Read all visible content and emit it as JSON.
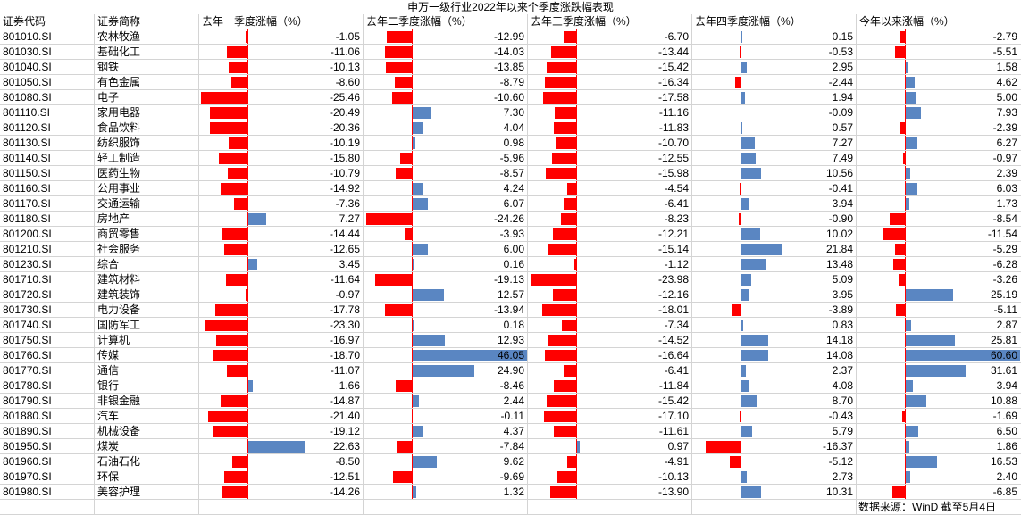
{
  "title": "申万一级行业2022年以来个季度涨跌幅表现",
  "headers": [
    "证券代码",
    "证券简称",
    "去年一季度涨幅（%）",
    "去年二季度涨幅（%）",
    "去年三季度涨幅（%）",
    "去年四季度涨幅（%）",
    "今年以来涨幅（%）"
  ],
  "colors": {
    "negative_bar": "#ff0000",
    "positive_bar": "#5a86c2",
    "grid": "#d4d4d4"
  },
  "bar_scale_max_abs": [
    26,
    25,
    25,
    22,
    26
  ],
  "rows": [
    {
      "code": "801010.SI",
      "name": "农林牧渔",
      "values": [
        "-1.05",
        "-12.99",
        "-6.70",
        "0.15",
        "-2.79"
      ]
    },
    {
      "code": "801030.SI",
      "name": "基础化工",
      "values": [
        "-11.06",
        "-14.03",
        "-13.44",
        "-0.53",
        "-5.51"
      ]
    },
    {
      "code": "801040.SI",
      "name": "钢铁",
      "values": [
        "-10.13",
        "-13.85",
        "-15.42",
        "2.95",
        "1.58"
      ]
    },
    {
      "code": "801050.SI",
      "name": "有色金属",
      "values": [
        "-8.60",
        "-8.79",
        "-16.34",
        "-2.44",
        "4.62"
      ]
    },
    {
      "code": "801080.SI",
      "name": "电子",
      "values": [
        "-25.46",
        "-10.60",
        "-17.58",
        "1.94",
        "5.00"
      ]
    },
    {
      "code": "801110.SI",
      "name": "家用电器",
      "values": [
        "-20.49",
        "7.30",
        "-11.16",
        "-0.09",
        "7.93"
      ]
    },
    {
      "code": "801120.SI",
      "name": "食品饮料",
      "values": [
        "-20.36",
        "4.04",
        "-11.83",
        "0.57",
        "-2.39"
      ]
    },
    {
      "code": "801130.SI",
      "name": "纺织服饰",
      "values": [
        "-10.19",
        "0.98",
        "-10.70",
        "7.27",
        "6.27"
      ]
    },
    {
      "code": "801140.SI",
      "name": "轻工制造",
      "values": [
        "-15.80",
        "-5.96",
        "-12.55",
        "7.49",
        "-0.97"
      ]
    },
    {
      "code": "801150.SI",
      "name": "医药生物",
      "values": [
        "-10.79",
        "-8.57",
        "-15.98",
        "10.56",
        "2.39"
      ]
    },
    {
      "code": "801160.SI",
      "name": "公用事业",
      "values": [
        "-14.92",
        "4.24",
        "-4.54",
        "-0.41",
        "6.03"
      ]
    },
    {
      "code": "801170.SI",
      "name": "交通运输",
      "values": [
        "-7.36",
        "6.07",
        "-6.41",
        "3.94",
        "1.73"
      ]
    },
    {
      "code": "801180.SI",
      "name": "房地产",
      "values": [
        "7.27",
        "-24.26",
        "-8.23",
        "-0.90",
        "-8.54"
      ]
    },
    {
      "code": "801200.SI",
      "name": "商贸零售",
      "values": [
        "-14.44",
        "-3.93",
        "-12.21",
        "10.02",
        "-11.54"
      ]
    },
    {
      "code": "801210.SI",
      "name": "社会服务",
      "values": [
        "-12.65",
        "6.00",
        "-15.14",
        "21.84",
        "-5.29"
      ]
    },
    {
      "code": "801230.SI",
      "name": "综合",
      "values": [
        "3.45",
        "0.16",
        "-1.12",
        "13.48",
        "-6.28"
      ]
    },
    {
      "code": "801710.SI",
      "name": "建筑材料",
      "values": [
        "-11.64",
        "-19.13",
        "-23.98",
        "5.09",
        "-3.26"
      ]
    },
    {
      "code": "801720.SI",
      "name": "建筑装饰",
      "values": [
        "-0.97",
        "12.57",
        "-12.16",
        "3.95",
        "25.19"
      ]
    },
    {
      "code": "801730.SI",
      "name": "电力设备",
      "values": [
        "-17.78",
        "-13.94",
        "-18.01",
        "-3.89",
        "-5.11"
      ]
    },
    {
      "code": "801740.SI",
      "name": "国防军工",
      "values": [
        "-23.30",
        "0.18",
        "-7.34",
        "0.83",
        "2.87"
      ]
    },
    {
      "code": "801750.SI",
      "name": "计算机",
      "values": [
        "-16.97",
        "12.93",
        "-14.52",
        "14.18",
        "25.81"
      ]
    },
    {
      "code": "801760.SI",
      "name": "传媒",
      "values": [
        "-18.70",
        "46.05",
        "-16.64",
        "14.08",
        "60.60"
      ]
    },
    {
      "code": "801770.SI",
      "name": "通信",
      "values": [
        "-11.07",
        "24.90",
        "-6.41",
        "2.37",
        "31.61"
      ]
    },
    {
      "code": "801780.SI",
      "name": "银行",
      "values": [
        "1.66",
        "-8.46",
        "-11.84",
        "4.08",
        "3.94"
      ]
    },
    {
      "code": "801790.SI",
      "name": "非银金融",
      "values": [
        "-14.87",
        "2.44",
        "-15.42",
        "8.70",
        "10.88"
      ]
    },
    {
      "code": "801880.SI",
      "name": "汽车",
      "values": [
        "-21.40",
        "-0.11",
        "-17.10",
        "-0.43",
        "-1.69"
      ]
    },
    {
      "code": "801890.SI",
      "name": "机械设备",
      "values": [
        "-19.12",
        "4.37",
        "-11.61",
        "5.79",
        "6.50"
      ]
    },
    {
      "code": "801950.SI",
      "name": "煤炭",
      "values": [
        "22.63",
        "-7.84",
        "0.97",
        "-16.37",
        "1.86"
      ]
    },
    {
      "code": "801960.SI",
      "name": "石油石化",
      "values": [
        "-8.50",
        "9.62",
        "-4.91",
        "-5.12",
        "16.53"
      ]
    },
    {
      "code": "801970.SI",
      "name": "环保",
      "values": [
        "-12.51",
        "-9.69",
        "-10.13",
        "2.73",
        "2.40"
      ]
    },
    {
      "code": "801980.SI",
      "name": "美容护理",
      "values": [
        "-14.26",
        "1.32",
        "-13.90",
        "10.31",
        "-6.85"
      ]
    }
  ],
  "footer": "数据来源：WinD 截至5月4日"
}
